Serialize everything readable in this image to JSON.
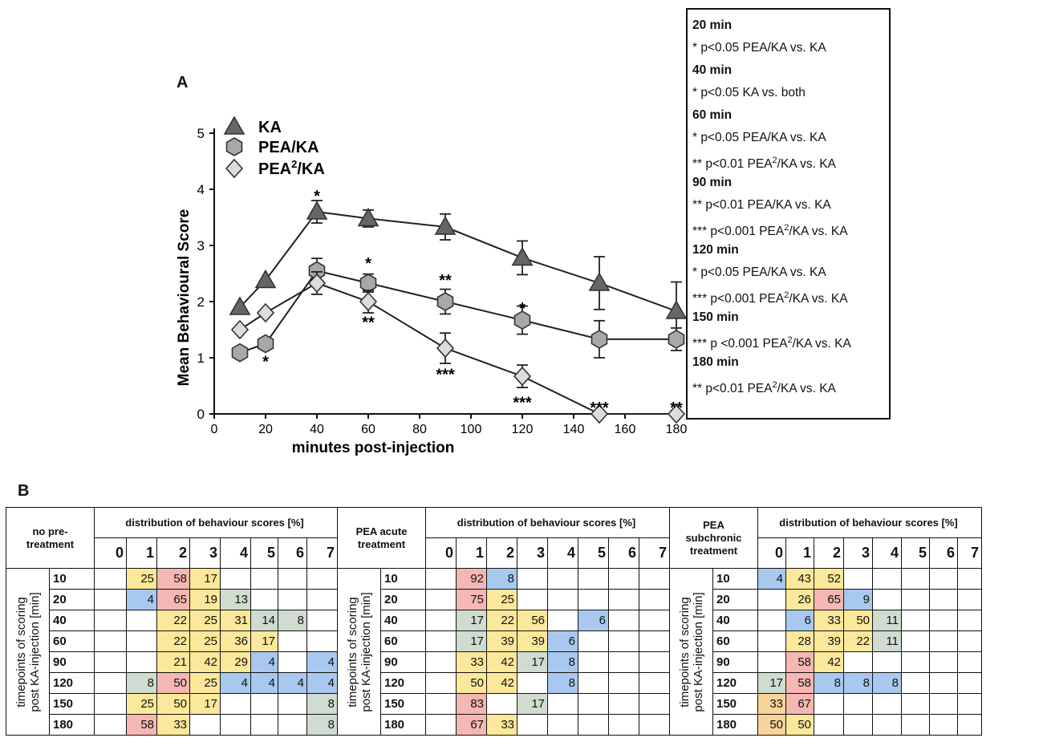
{
  "panel_labels": {
    "a": "A",
    "b": "B"
  },
  "chart_data": {
    "type": "line",
    "xlabel": "minutes post-injection",
    "ylabel": "Mean Behavioural Score",
    "xlim": [
      0,
      180
    ],
    "ylim": [
      0,
      5
    ],
    "xticks": [
      0,
      20,
      40,
      60,
      80,
      100,
      120,
      140,
      160,
      180
    ],
    "yticks": [
      0,
      1,
      2,
      3,
      4,
      5
    ],
    "legend_position": "top-left",
    "series": [
      {
        "name": "KA",
        "marker": "triangle",
        "color": "#666666",
        "x": [
          10,
          20,
          40,
          60,
          90,
          120,
          150,
          180
        ],
        "y": [
          1.9,
          2.38,
          3.6,
          3.48,
          3.33,
          2.78,
          2.33,
          1.83
        ],
        "err": [
          0.0,
          0.0,
          0.2,
          0.15,
          0.23,
          0.3,
          0.47,
          0.52
        ]
      },
      {
        "name": "PEA/KA",
        "marker": "hexagon",
        "color": "#a8a8a8",
        "x": [
          10,
          20,
          40,
          60,
          90,
          120,
          150,
          180
        ],
        "y": [
          1.09,
          1.25,
          2.55,
          2.33,
          2.0,
          1.67,
          1.33,
          1.33
        ],
        "err": [
          0.0,
          0.0,
          0.22,
          0.16,
          0.22,
          0.25,
          0.33,
          0.2
        ]
      },
      {
        "name": "PEA2/KA",
        "marker": "diamond",
        "color": "#dcdcdc",
        "x": [
          10,
          20,
          40,
          60,
          90,
          120,
          150,
          180
        ],
        "y": [
          1.5,
          1.8,
          2.33,
          2.0,
          1.17,
          0.67,
          0.0,
          0.0
        ],
        "err": [
          0.0,
          0.0,
          0.2,
          0.2,
          0.27,
          0.2,
          0.0,
          0.0
        ]
      }
    ],
    "annotations": [
      {
        "x": 20,
        "y": 0.95,
        "text": "*"
      },
      {
        "x": 40,
        "y": 3.9,
        "text": "*"
      },
      {
        "x": 60,
        "y": 2.7,
        "text": "*"
      },
      {
        "x": 60,
        "y": 1.65,
        "text": "**"
      },
      {
        "x": 90,
        "y": 2.4,
        "text": "**"
      },
      {
        "x": 90,
        "y": 0.72,
        "text": "***"
      },
      {
        "x": 120,
        "y": 1.9,
        "text": "*"
      },
      {
        "x": 120,
        "y": 0.22,
        "text": "***"
      },
      {
        "x": 150,
        "y": 0.13,
        "text": "***"
      },
      {
        "x": 180,
        "y": 0.13,
        "text": "**"
      }
    ]
  },
  "stats": [
    {
      "head": true,
      "text": "20 min"
    },
    {
      "text": "* p<0.05 PEA/KA vs. KA"
    },
    {
      "head": true,
      "text": "40 min"
    },
    {
      "text": "* p<0.05 KA vs. both"
    },
    {
      "head": true,
      "text": "60 min"
    },
    {
      "text": "* p<0.05 PEA/KA vs. KA"
    },
    {
      "text": "** p<0.01 PEA",
      "sup": "2",
      "tail": "/KA vs. KA"
    },
    {
      "head": true,
      "text": "90 min"
    },
    {
      "text": "** p<0.01 PEA/KA vs. KA"
    },
    {
      "text": "*** p<0.001 PEA",
      "sup": "2",
      "tail": "/KA vs. KA"
    },
    {
      "head": true,
      "text": "120 min"
    },
    {
      "text": "* p<0.05 PEA/KA vs. KA"
    },
    {
      "text": "*** p<0.001 PEA",
      "sup": "2",
      "tail": "/KA vs. KA"
    },
    {
      "head": true,
      "text": "150 min"
    },
    {
      "text": "*** p <0.001 PEA",
      "sup": "2",
      "tail": "/KA vs. KA"
    },
    {
      "head": true,
      "text": "180 min"
    },
    {
      "text": "** p<0.01  PEA",
      "sup": "2",
      "tail": "/KA vs. KA"
    }
  ],
  "table": {
    "timepoint_axis_label_1": "timepoints of scoring",
    "timepoint_axis_label_2": "post KA-injection [min]",
    "dist_header": "distribution of behaviour scores [%]",
    "timepoints": [
      "10",
      "20",
      "40",
      "60",
      "90",
      "120",
      "150",
      "180"
    ],
    "colors": {
      "b": "#a9c8f0",
      "r": "#f4b7b3",
      "y": "#fbe89a",
      "g": "#cfdccf",
      "o": "#f8d39a"
    },
    "groups": [
      {
        "title": "no pre-\ntreatment",
        "scores": [
          "0",
          "1",
          "2",
          "3",
          "4",
          "5",
          "6",
          "7"
        ],
        "rows": [
          [
            [
              "",
              ""
            ],
            [
              "25",
              "y"
            ],
            [
              "58",
              "r"
            ],
            [
              "17",
              "y"
            ],
            [
              "",
              ""
            ],
            [
              "",
              ""
            ],
            [
              "",
              ""
            ],
            [
              "",
              ""
            ]
          ],
          [
            [
              "",
              ""
            ],
            [
              "4",
              "b"
            ],
            [
              "65",
              "r"
            ],
            [
              "19",
              "y"
            ],
            [
              "13",
              "g"
            ],
            [
              "",
              ""
            ],
            [
              "",
              ""
            ],
            [
              "",
              ""
            ]
          ],
          [
            [
              "",
              ""
            ],
            [
              "",
              ""
            ],
            [
              "22",
              "y"
            ],
            [
              "25",
              "y"
            ],
            [
              "31",
              "y"
            ],
            [
              "14",
              "g"
            ],
            [
              "8",
              "g"
            ],
            [
              "",
              ""
            ]
          ],
          [
            [
              "",
              ""
            ],
            [
              "",
              ""
            ],
            [
              "22",
              "y"
            ],
            [
              "25",
              "y"
            ],
            [
              "36",
              "y"
            ],
            [
              "17",
              "y"
            ],
            [
              "",
              ""
            ],
            [
              "",
              ""
            ]
          ],
          [
            [
              "",
              ""
            ],
            [
              "",
              ""
            ],
            [
              "21",
              "y"
            ],
            [
              "42",
              "y"
            ],
            [
              "29",
              "y"
            ],
            [
              "4",
              "b"
            ],
            [
              "",
              ""
            ],
            [
              "4",
              "b"
            ]
          ],
          [
            [
              "",
              ""
            ],
            [
              "8",
              "g"
            ],
            [
              "50",
              "r"
            ],
            [
              "25",
              "y"
            ],
            [
              "4",
              "b"
            ],
            [
              "4",
              "b"
            ],
            [
              "4",
              "b"
            ],
            [
              "4",
              "b"
            ]
          ],
          [
            [
              "",
              ""
            ],
            [
              "25",
              "y"
            ],
            [
              "50",
              "y"
            ],
            [
              "17",
              "y"
            ],
            [
              "",
              ""
            ],
            [
              "",
              ""
            ],
            [
              "",
              ""
            ],
            [
              "8",
              "g"
            ]
          ],
          [
            [
              "",
              ""
            ],
            [
              "58",
              "r"
            ],
            [
              "33",
              "y"
            ],
            [
              "",
              ""
            ],
            [
              "",
              ""
            ],
            [
              "",
              ""
            ],
            [
              "",
              ""
            ],
            [
              "8",
              "g"
            ]
          ]
        ]
      },
      {
        "title": "PEA acute\ntreatment",
        "scores": [
          "0",
          "1",
          "2",
          "3",
          "4",
          "5",
          "6",
          "7"
        ],
        "rows": [
          [
            [
              "",
              ""
            ],
            [
              "92",
              "r"
            ],
            [
              "8",
              "b"
            ],
            [
              "",
              ""
            ],
            [
              "",
              ""
            ],
            [
              "",
              ""
            ],
            [
              "",
              ""
            ],
            [
              "",
              ""
            ]
          ],
          [
            [
              "",
              ""
            ],
            [
              "75",
              "r"
            ],
            [
              "25",
              "y"
            ],
            [
              "",
              ""
            ],
            [
              "",
              ""
            ],
            [
              "",
              ""
            ],
            [
              "",
              ""
            ],
            [
              "",
              ""
            ]
          ],
          [
            [
              "",
              ""
            ],
            [
              "17",
              "g"
            ],
            [
              "22",
              "y"
            ],
            [
              "56",
              "y"
            ],
            [
              "",
              ""
            ],
            [
              "6",
              "b"
            ],
            [
              "",
              ""
            ],
            [
              "",
              ""
            ]
          ],
          [
            [
              "",
              ""
            ],
            [
              "17",
              "g"
            ],
            [
              "39",
              "y"
            ],
            [
              "39",
              "y"
            ],
            [
              "6",
              "b"
            ],
            [
              "",
              ""
            ],
            [
              "",
              ""
            ],
            [
              "",
              ""
            ]
          ],
          [
            [
              "",
              ""
            ],
            [
              "33",
              "y"
            ],
            [
              "42",
              "y"
            ],
            [
              "17",
              "g"
            ],
            [
              "8",
              "b"
            ],
            [
              "",
              ""
            ],
            [
              "",
              ""
            ],
            [
              "",
              ""
            ]
          ],
          [
            [
              "",
              ""
            ],
            [
              "50",
              "y"
            ],
            [
              "42",
              "y"
            ],
            [
              "",
              ""
            ],
            [
              "8",
              "b"
            ],
            [
              "",
              ""
            ],
            [
              "",
              ""
            ],
            [
              "",
              ""
            ]
          ],
          [
            [
              "",
              ""
            ],
            [
              "83",
              "r"
            ],
            [
              "",
              ""
            ],
            [
              "17",
              "g"
            ],
            [
              "",
              ""
            ],
            [
              "",
              ""
            ],
            [
              "",
              ""
            ],
            [
              "",
              ""
            ]
          ],
          [
            [
              "",
              ""
            ],
            [
              "67",
              "r"
            ],
            [
              "33",
              "y"
            ],
            [
              "",
              ""
            ],
            [
              "",
              ""
            ],
            [
              "",
              ""
            ],
            [
              "",
              ""
            ],
            [
              "",
              ""
            ]
          ]
        ]
      },
      {
        "title": "PEA\nsubchronic\ntreatment",
        "scores": [
          "0",
          "1",
          "2",
          "3",
          "4",
          "5",
          "6",
          "7"
        ],
        "rows": [
          [
            [
              "4",
              "b"
            ],
            [
              "43",
              "y"
            ],
            [
              "52",
              "y"
            ],
            [
              "",
              ""
            ],
            [
              "",
              ""
            ],
            [
              "",
              ""
            ],
            [
              "",
              ""
            ],
            [
              "",
              ""
            ]
          ],
          [
            [
              "",
              ""
            ],
            [
              "26",
              "y"
            ],
            [
              "65",
              "r"
            ],
            [
              "9",
              "b"
            ],
            [
              "",
              ""
            ],
            [
              "",
              ""
            ],
            [
              "",
              ""
            ],
            [
              "",
              ""
            ]
          ],
          [
            [
              "",
              ""
            ],
            [
              "6",
              "b"
            ],
            [
              "33",
              "y"
            ],
            [
              "50",
              "y"
            ],
            [
              "11",
              "g"
            ],
            [
              "",
              ""
            ],
            [
              "",
              ""
            ],
            [
              "",
              ""
            ]
          ],
          [
            [
              "",
              ""
            ],
            [
              "28",
              "y"
            ],
            [
              "39",
              "y"
            ],
            [
              "22",
              "y"
            ],
            [
              "11",
              "g"
            ],
            [
              "",
              ""
            ],
            [
              "",
              ""
            ],
            [
              "",
              ""
            ]
          ],
          [
            [
              "",
              ""
            ],
            [
              "58",
              "r"
            ],
            [
              "42",
              "y"
            ],
            [
              "",
              ""
            ],
            [
              "",
              ""
            ],
            [
              "",
              ""
            ],
            [
              "",
              ""
            ],
            [
              "",
              ""
            ]
          ],
          [
            [
              "17",
              "g"
            ],
            [
              "58",
              "r"
            ],
            [
              "8",
              "b"
            ],
            [
              "8",
              "b"
            ],
            [
              "8",
              "b"
            ],
            [
              "",
              ""
            ],
            [
              "",
              ""
            ],
            [
              "",
              ""
            ]
          ],
          [
            [
              "33",
              "o"
            ],
            [
              "67",
              "r"
            ],
            [
              "",
              ""
            ],
            [
              "",
              ""
            ],
            [
              "",
              ""
            ],
            [
              "",
              ""
            ],
            [
              "",
              ""
            ],
            [
              "",
              ""
            ]
          ],
          [
            [
              "50",
              "o"
            ],
            [
              "50",
              "y"
            ],
            [
              "",
              ""
            ],
            [
              "",
              ""
            ],
            [
              "",
              ""
            ],
            [
              "",
              ""
            ],
            [
              "",
              ""
            ],
            [
              "",
              ""
            ]
          ]
        ]
      }
    ]
  }
}
